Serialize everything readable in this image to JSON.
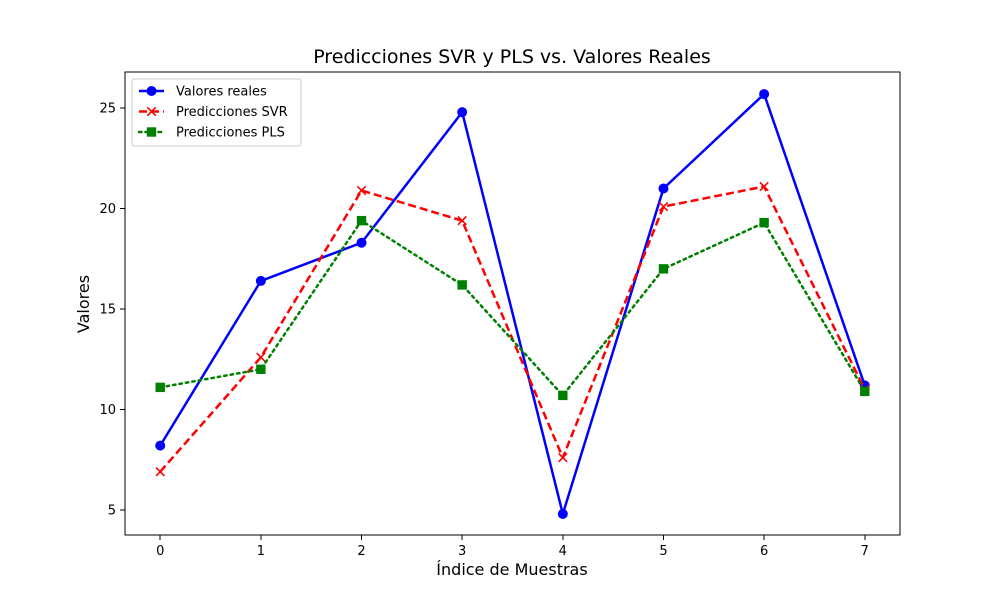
{
  "chart_data": {
    "type": "line",
    "title": "Predicciones SVR y PLS vs. Valores Reales",
    "xlabel": "Índice de Muestras",
    "ylabel": "Valores",
    "x": [
      0,
      1,
      2,
      3,
      4,
      5,
      6,
      7
    ],
    "x_ticks": [
      "0",
      "1",
      "2",
      "3",
      "4",
      "5",
      "6",
      "7"
    ],
    "y_ticks": [
      "5",
      "10",
      "15",
      "20",
      "25"
    ],
    "xlim": [
      -0.35,
      7.35
    ],
    "ylim": [
      3.75,
      26.8
    ],
    "grid": false,
    "legend_position": "top-left",
    "series": [
      {
        "name": "Valores reales",
        "values": [
          8.2,
          16.4,
          18.3,
          24.8,
          4.8,
          21.0,
          25.7,
          11.2
        ],
        "color": "#0000ff",
        "line_style": "solid",
        "marker": "circle"
      },
      {
        "name": "Predicciones SVR",
        "values": [
          6.9,
          12.6,
          20.9,
          19.4,
          7.6,
          20.1,
          21.1,
          11.0
        ],
        "color": "#ff0000",
        "line_style": "dashed",
        "marker": "x"
      },
      {
        "name": "Predicciones PLS",
        "values": [
          11.1,
          12.0,
          19.4,
          16.2,
          10.7,
          17.0,
          19.3,
          10.9
        ],
        "color": "#008000",
        "line_style": "dotted",
        "marker": "square"
      }
    ]
  }
}
